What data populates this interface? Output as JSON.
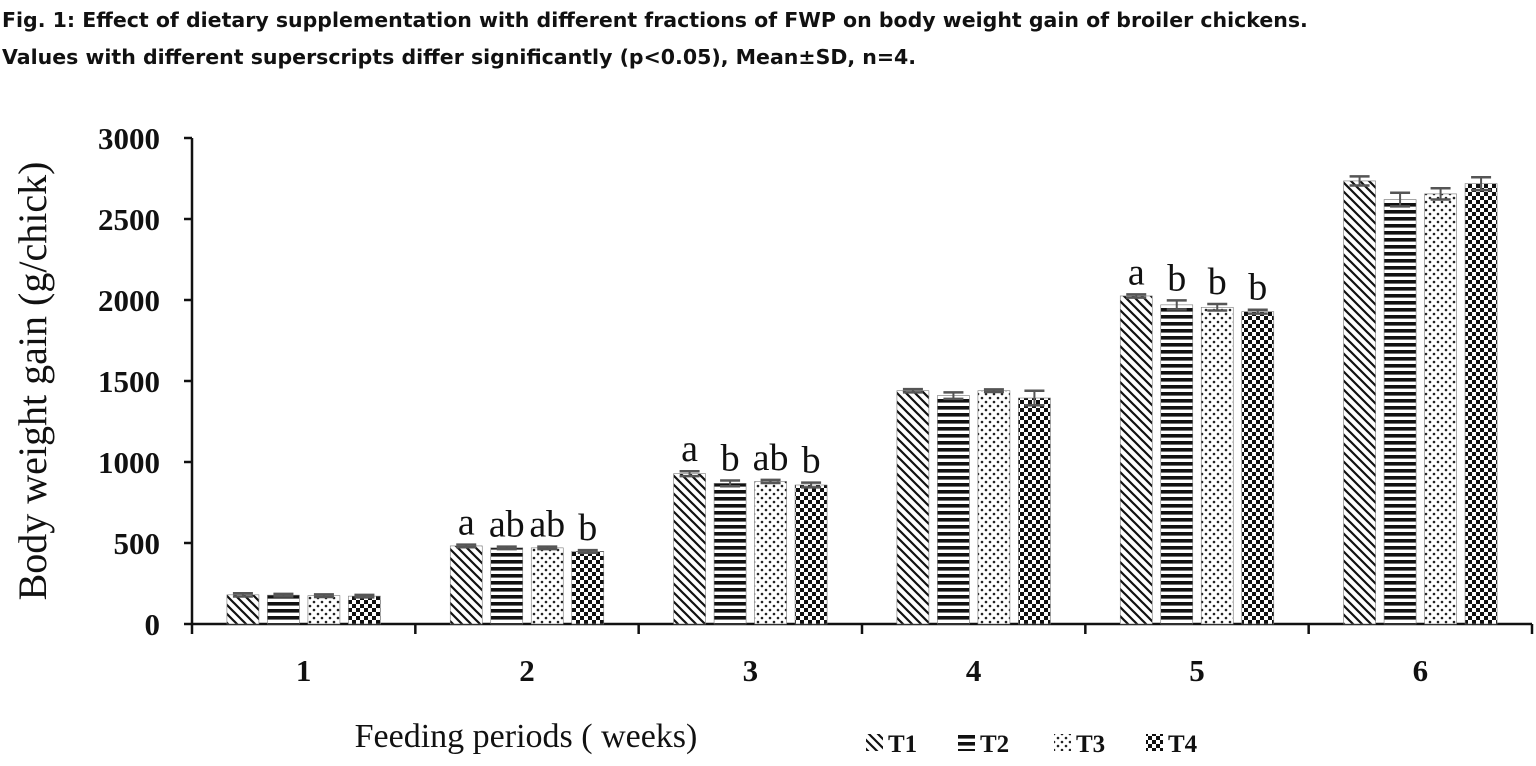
{
  "caption": {
    "line1": "Fig. 1: Effect of dietary supplementation with different fractions of FWP on body weight gain of broiler chickens.",
    "line2": "Values with different superscripts differ significantly (p<0.05), Mean±SD, n=4."
  },
  "chart_data": {
    "type": "bar",
    "categories": [
      "1",
      "2",
      "3",
      "4",
      "5",
      "6"
    ],
    "xlabel": "Feeding periods ( weeks)",
    "ylabel": "Body weight gain (g/chick)",
    "ylim": [
      0,
      3000
    ],
    "yticks": [
      0,
      500,
      1000,
      1500,
      2000,
      2500,
      3000
    ],
    "grid": false,
    "legend_position": "bottom",
    "error_bars": "SD",
    "series": [
      {
        "name": "T1",
        "pattern": "diagonal",
        "values": [
          180,
          482,
          928,
          1440,
          2025,
          2735
        ],
        "errors": [
          10,
          8,
          15,
          10,
          10,
          28
        ],
        "labels": [
          "",
          "a",
          "a",
          "",
          "a",
          ""
        ]
      },
      {
        "name": "T2",
        "pattern": "horizontal",
        "values": [
          178,
          470,
          868,
          1410,
          1970,
          2620
        ],
        "errors": [
          8,
          8,
          18,
          20,
          28,
          42
        ],
        "labels": [
          "",
          "ab",
          "b",
          "",
          "b",
          ""
        ]
      },
      {
        "name": "T3",
        "pattern": "dots",
        "values": [
          175,
          470,
          880,
          1440,
          1955,
          2655
        ],
        "errors": [
          8,
          8,
          10,
          8,
          20,
          35
        ],
        "labels": [
          "",
          "ab",
          "ab",
          "",
          "b",
          ""
        ]
      },
      {
        "name": "T4",
        "pattern": "checker",
        "values": [
          172,
          448,
          858,
          1395,
          1928,
          2718
        ],
        "errors": [
          8,
          8,
          15,
          45,
          12,
          40
        ],
        "labels": [
          "",
          "b",
          "b",
          "",
          "b",
          ""
        ]
      }
    ]
  }
}
